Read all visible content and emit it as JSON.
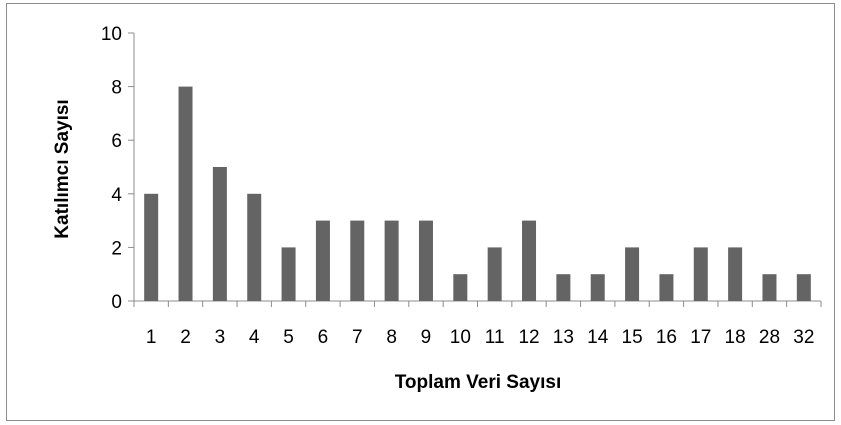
{
  "chart_data": {
    "type": "bar",
    "title": "",
    "xlabel": "Toplam Veri Sayısı",
    "ylabel": "Katılımcı Sayısı",
    "categories": [
      "1",
      "2",
      "3",
      "4",
      "5",
      "6",
      "7",
      "8",
      "9",
      "10",
      "11",
      "12",
      "13",
      "14",
      "15",
      "16",
      "17",
      "18",
      "28",
      "32"
    ],
    "values": [
      4,
      8,
      5,
      4,
      2,
      3,
      3,
      3,
      3,
      1,
      2,
      3,
      1,
      1,
      2,
      1,
      2,
      2,
      1,
      1
    ],
    "ylim": [
      0,
      10
    ],
    "yticks": [
      0,
      2,
      4,
      6,
      8,
      10
    ],
    "grid": false,
    "legend": "none",
    "bar_color": "#646464"
  }
}
